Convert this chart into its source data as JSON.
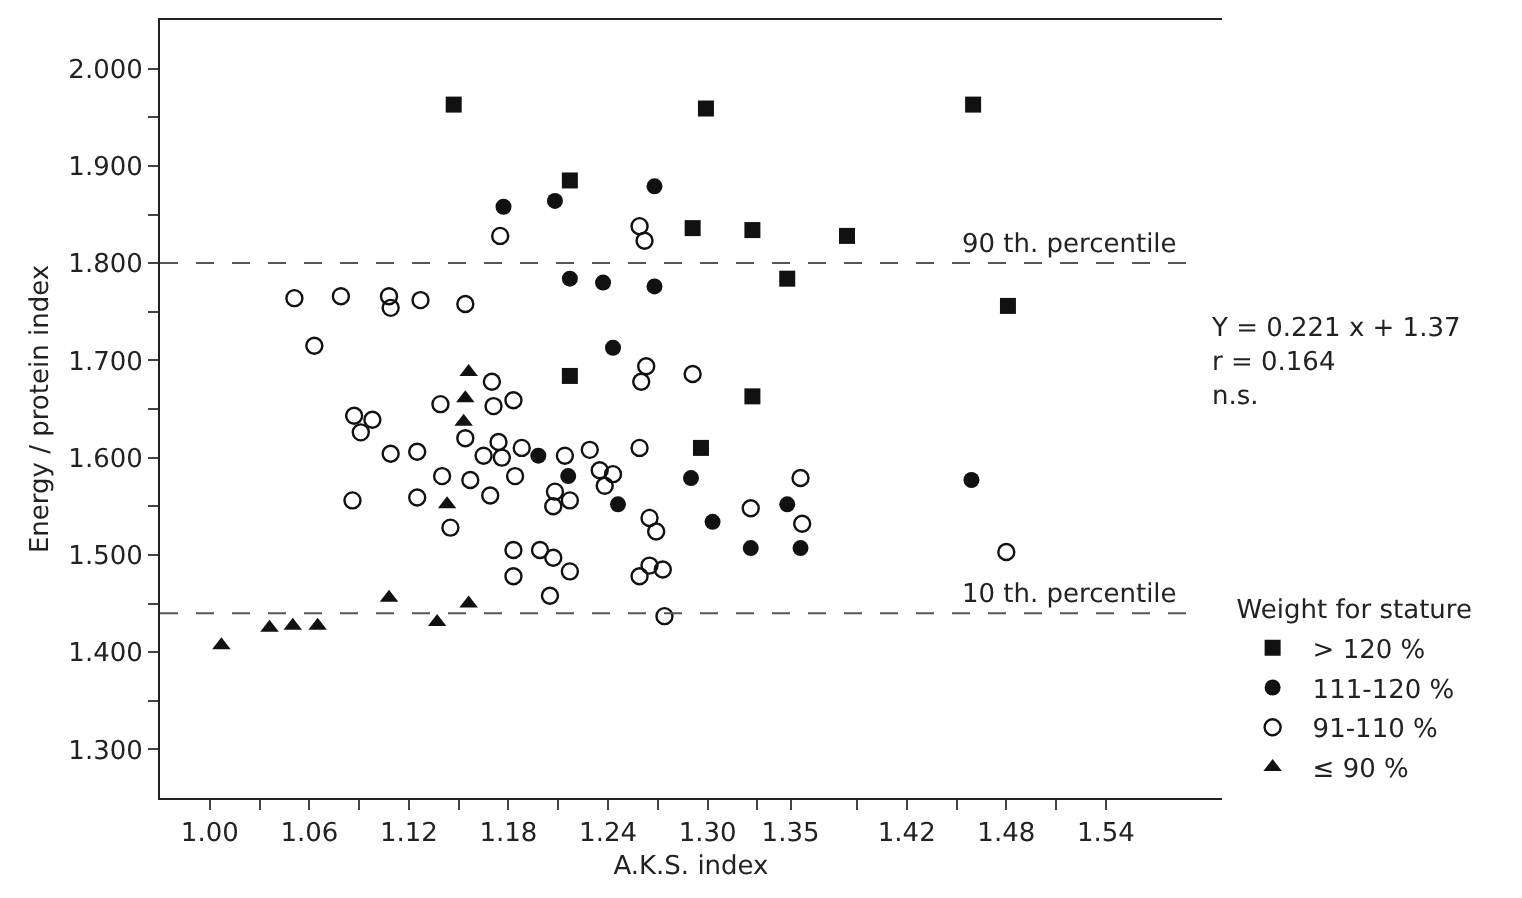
{
  "chart_data": {
    "type": "scatter",
    "xlabel": "A.K.S. index",
    "ylabel": "Energy / protein index",
    "legend_title": "Weight for stature",
    "legend": "right",
    "xlim": [
      0.97,
      1.61
    ],
    "ylim": [
      1.25,
      2.05
    ],
    "xticks": [
      {
        "value": 1.0,
        "label": "1.00"
      },
      {
        "value": 1.03,
        "label": null
      },
      1.06,
      {
        "value": 1.09,
        "label": null
      },
      1.12,
      {
        "value": 1.15,
        "label": null
      },
      1.18,
      {
        "value": 1.21,
        "label": null
      },
      1.24,
      {
        "value": 1.27,
        "label": null
      },
      {
        "value": 1.3,
        "label": "1.30"
      },
      {
        "value": 1.33,
        "label": null
      },
      1.35,
      {
        "value": 1.39,
        "label": null
      },
      1.42,
      {
        "value": 1.45,
        "label": null
      },
      1.48,
      {
        "value": 1.51,
        "label": null
      },
      1.54
    ],
    "yticks": [
      {
        "value": 1.3,
        "label": "1.300"
      },
      {
        "value": 1.35,
        "label": null
      },
      {
        "value": 1.4,
        "label": "1.400"
      },
      {
        "value": 1.45,
        "label": null
      },
      {
        "value": 1.5,
        "label": "1.500"
      },
      {
        "value": 1.55,
        "label": null
      },
      {
        "value": 1.6,
        "label": "1.600"
      },
      {
        "value": 1.65,
        "label": null
      },
      {
        "value": 1.7,
        "label": "1.700"
      },
      {
        "value": 1.75,
        "label": null
      },
      {
        "value": 1.8,
        "label": "1.800"
      },
      {
        "value": 1.85,
        "label": null
      },
      {
        "value": 1.9,
        "label": "1.900"
      },
      {
        "value": 1.95,
        "label": null
      },
      {
        "value": 2.0,
        "label": "2.000"
      }
    ],
    "ref_lines": [
      {
        "axis": "y",
        "value": 1.8,
        "label": "90 th. percentile",
        "color": "#555555",
        "line_style": "dashed"
      },
      {
        "axis": "y",
        "value": 1.44,
        "label": "10 th. percentile",
        "color": "#555555",
        "line_style": "dashed"
      }
    ],
    "annotations": [
      "Y = 0.221 x + 1.37",
      "r = 0.164",
      "n.s."
    ],
    "series": [
      {
        "name": "> 120 %",
        "color": "#111111",
        "marker": "square",
        "x": [
          1.147,
          1.217,
          1.217,
          1.299,
          1.46,
          1.291,
          1.327,
          1.384,
          1.348,
          1.481,
          1.327,
          1.296
        ],
        "values": [
          1.963,
          1.885,
          1.684,
          1.959,
          1.963,
          1.836,
          1.834,
          1.828,
          1.784,
          1.756,
          1.663,
          1.61
        ]
      },
      {
        "name": "111-120 %",
        "color": "#111111",
        "marker": "circle",
        "x": [
          1.177,
          1.208,
          1.268,
          1.217,
          1.237,
          1.268,
          1.243,
          1.198,
          1.216,
          1.246,
          1.29,
          1.303,
          1.326,
          1.348,
          1.356,
          1.459
        ],
        "values": [
          1.858,
          1.864,
          1.879,
          1.784,
          1.78,
          1.776,
          1.713,
          1.602,
          1.581,
          1.552,
          1.579,
          1.534,
          1.507,
          1.552,
          1.507,
          1.577
        ]
      },
      {
        "name": "91-110 %",
        "color": "#111111",
        "marker": "circle-open",
        "x": [
          1.175,
          1.259,
          1.262,
          1.051,
          1.079,
          1.108,
          1.109,
          1.127,
          1.154,
          1.063,
          1.263,
          1.26,
          1.17,
          1.139,
          1.171,
          1.183,
          1.087,
          1.098,
          1.091,
          1.154,
          1.174,
          1.165,
          1.176,
          1.188,
          1.109,
          1.125,
          1.214,
          1.229,
          1.259,
          1.14,
          1.157,
          1.184,
          1.235,
          1.243,
          1.238,
          1.208,
          1.217,
          1.207,
          1.169,
          1.125,
          1.086,
          1.145,
          1.265,
          1.269,
          1.183,
          1.199,
          1.207,
          1.217,
          1.183,
          1.205,
          1.259,
          1.265,
          1.273,
          1.274,
          1.291,
          1.356,
          1.326,
          1.357,
          1.48
        ],
        "values": [
          1.828,
          1.838,
          1.823,
          1.764,
          1.766,
          1.766,
          1.754,
          1.762,
          1.758,
          1.715,
          1.694,
          1.678,
          1.678,
          1.655,
          1.653,
          1.659,
          1.643,
          1.639,
          1.626,
          1.62,
          1.616,
          1.602,
          1.6,
          1.61,
          1.604,
          1.606,
          1.602,
          1.608,
          1.61,
          1.581,
          1.577,
          1.581,
          1.587,
          1.583,
          1.571,
          1.565,
          1.556,
          1.55,
          1.561,
          1.559,
          1.556,
          1.528,
          1.538,
          1.524,
          1.505,
          1.505,
          1.497,
          1.483,
          1.478,
          1.458,
          1.478,
          1.489,
          1.485,
          1.437,
          1.686,
          1.579,
          1.548,
          1.532,
          1.503
        ]
      },
      {
        "name": "≤ 90 %",
        "color": "#111111",
        "marker": "triangle",
        "x": [
          1.156,
          1.154,
          1.153,
          1.143,
          1.108,
          1.156,
          1.137,
          1.065,
          1.05,
          1.036,
          1.007
        ],
        "values": [
          1.688,
          1.661,
          1.637,
          1.552,
          1.456,
          1.45,
          1.431,
          1.427,
          1.427,
          1.425,
          1.407
        ]
      }
    ]
  }
}
